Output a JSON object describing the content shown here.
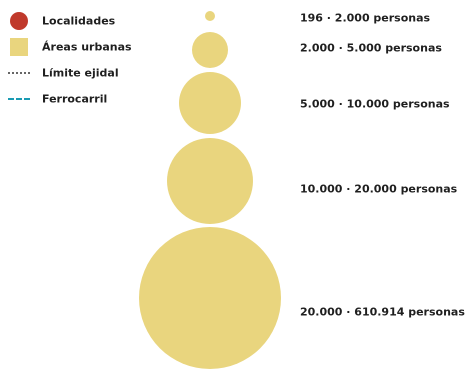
{
  "legend": {
    "items": [
      {
        "label": "Localidades",
        "icon": "red-dot-icon",
        "color": "#c0392b"
      },
      {
        "label": "Áreas urbanas",
        "icon": "urban-area-square-icon",
        "color": "#e9d57e"
      },
      {
        "label": "Límite ejidal",
        "icon": "dotted-line-icon",
        "color": "#666666"
      },
      {
        "label": "Ferrocarril",
        "icon": "dashed-line-icon",
        "color": "#1a9bb3"
      }
    ]
  },
  "population_scale": {
    "bubble_color": "#e9d57e",
    "classes": [
      {
        "label": "196 · 2.000 personas",
        "min": 196,
        "max": 2000
      },
      {
        "label": "2.000 · 5.000 personas",
        "min": 2000,
        "max": 5000
      },
      {
        "label": "5.000 · 10.000 personas",
        "min": 5000,
        "max": 10000
      },
      {
        "label": "10.000 · 20.000 personas",
        "min": 10000,
        "max": 20000
      },
      {
        "label": "20.000 · 610.914 personas",
        "min": 20000,
        "max": 610914
      }
    ]
  }
}
